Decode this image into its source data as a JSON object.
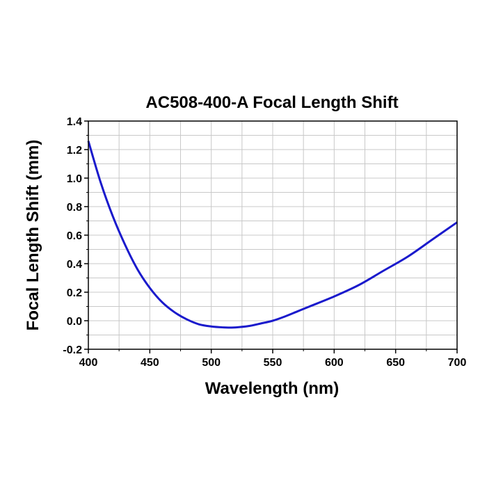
{
  "chart_data": {
    "type": "line",
    "title": "AC508-400-A Focal Length Shift",
    "xlabel": "Wavelength (nm)",
    "ylabel": "Focal Length Shift (mm)",
    "xlim": [
      400,
      700
    ],
    "ylim": [
      -0.2,
      1.4
    ],
    "x_ticks": [
      "400",
      "450",
      "500",
      "550",
      "600",
      "650",
      "700"
    ],
    "y_ticks": [
      "-0.2",
      "0.0",
      "0.2",
      "0.4",
      "0.6",
      "0.8",
      "1.0",
      "1.2",
      "1.4"
    ],
    "grid": true,
    "line_color": "#1a1acc",
    "series": [
      {
        "x": [
          400,
          410,
          420,
          430,
          440,
          450,
          460,
          470,
          480,
          490,
          500,
          510,
          515,
          520,
          530,
          540,
          550,
          560,
          570,
          580,
          600,
          620,
          640,
          660,
          680,
          700
        ],
        "y": [
          1.26,
          0.97,
          0.73,
          0.53,
          0.36,
          0.23,
          0.13,
          0.06,
          0.01,
          -0.025,
          -0.04,
          -0.047,
          -0.048,
          -0.047,
          -0.038,
          -0.02,
          0.0,
          0.03,
          0.065,
          0.1,
          0.17,
          0.25,
          0.35,
          0.45,
          0.57,
          0.69
        ]
      }
    ]
  }
}
